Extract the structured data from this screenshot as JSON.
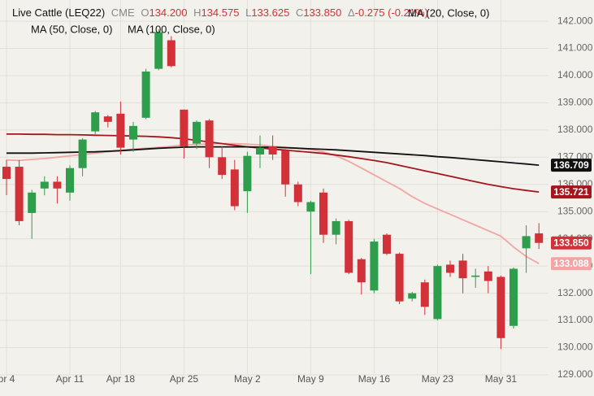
{
  "header": {
    "symbol": "Live Cattle (LEQ22)",
    "exchange": "CME",
    "open_label": "O",
    "open": "134.200",
    "high_label": "H",
    "high": "134.575",
    "low_label": "L",
    "low": "133.625",
    "close_label": "C",
    "close": "133.850",
    "change_label": "Δ",
    "change": "-0.275 (-0.21%)"
  },
  "chart_data": {
    "type": "candlestick",
    "categories": [
      "pr 4",
      null,
      null,
      null,
      null,
      "Apr 11",
      null,
      null,
      null,
      "Apr 18",
      null,
      null,
      null,
      null,
      "Apr 25",
      null,
      null,
      null,
      null,
      "May 2",
      null,
      null,
      null,
      null,
      "May 9",
      null,
      null,
      null,
      null,
      "May 16",
      null,
      null,
      null,
      null,
      "May 23",
      null,
      null,
      null,
      null,
      "May 31",
      null,
      null,
      null
    ],
    "open": [
      136.65,
      136.65,
      134.95,
      135.85,
      136.1,
      135.7,
      136.6,
      137.95,
      138.5,
      138.6,
      137.65,
      138.45,
      140.25,
      141.3,
      138.75,
      137.5,
      138.35,
      137.0,
      136.55,
      135.75,
      137.1,
      137.4,
      137.25,
      136.0,
      135.0,
      135.7,
      134.15,
      134.65,
      133.25,
      132.1,
      134.15,
      133.45,
      131.8,
      132.4,
      131.05,
      133.05,
      133.2,
      132.6,
      132.8,
      132.6,
      130.8,
      133.65,
      134.2
    ],
    "high": [
      136.9,
      136.9,
      135.8,
      136.3,
      136.3,
      136.7,
      137.7,
      138.7,
      138.55,
      139.05,
      138.3,
      140.25,
      141.7,
      141.45,
      138.75,
      138.35,
      138.4,
      137.4,
      136.9,
      137.2,
      137.8,
      137.8,
      137.3,
      136.1,
      135.4,
      135.85,
      134.75,
      134.7,
      133.3,
      134.0,
      134.2,
      133.5,
      132.05,
      132.5,
      133.05,
      133.2,
      133.45,
      132.9,
      133.0,
      132.65,
      132.95,
      134.5,
      134.575
    ],
    "low": [
      135.6,
      134.5,
      134.0,
      135.6,
      135.3,
      135.4,
      136.3,
      137.85,
      138.1,
      137.1,
      137.2,
      138.4,
      140.2,
      140.3,
      136.95,
      137.3,
      136.6,
      136.2,
      135.05,
      134.95,
      136.6,
      136.9,
      135.55,
      135.2,
      132.7,
      133.85,
      133.8,
      132.7,
      131.95,
      132.0,
      133.4,
      131.6,
      131.7,
      131.2,
      131.0,
      132.6,
      132.0,
      132.2,
      132.0,
      129.95,
      130.7,
      132.75,
      133.625
    ],
    "close": [
      136.2,
      134.65,
      135.7,
      136.1,
      135.85,
      136.6,
      137.65,
      138.65,
      138.3,
      137.35,
      138.15,
      140.15,
      141.6,
      140.35,
      137.4,
      138.3,
      137.0,
      136.35,
      135.2,
      137.05,
      137.35,
      137.1,
      136.0,
      135.35,
      135.35,
      134.15,
      134.65,
      132.75,
      132.4,
      133.9,
      133.45,
      131.7,
      132.0,
      131.5,
      133.0,
      132.75,
      132.55,
      132.65,
      132.45,
      130.35,
      132.9,
      134.1,
      133.85
    ],
    "last_close_label": "133.850",
    "up_color": "#2f9e4c",
    "down_color": "#d2313a",
    "series": [
      {
        "name": "MA (20, Close, 0)",
        "color": "#f2a5a5",
        "values": [
          136.9,
          136.88,
          136.92,
          136.95,
          137.0,
          137.05,
          137.1,
          137.15,
          137.2,
          137.25,
          137.3,
          137.33,
          137.36,
          137.4,
          137.45,
          137.47,
          137.49,
          137.5,
          137.5,
          137.48,
          137.45,
          137.4,
          137.37,
          137.33,
          137.28,
          137.2,
          137.05,
          136.85,
          136.6,
          136.35,
          136.1,
          135.85,
          135.55,
          135.3,
          135.1,
          134.9,
          134.7,
          134.5,
          134.3,
          134.1,
          133.7,
          133.35,
          133.088
        ]
      },
      {
        "name": "MA (50, Close, 0)",
        "color": "#a3161d",
        "values": [
          137.85,
          137.85,
          137.84,
          137.84,
          137.83,
          137.83,
          137.82,
          137.81,
          137.8,
          137.79,
          137.78,
          137.77,
          137.75,
          137.72,
          137.68,
          137.62,
          137.56,
          137.5,
          137.44,
          137.38,
          137.34,
          137.3,
          137.26,
          137.22,
          137.18,
          137.14,
          137.08,
          137.02,
          136.95,
          136.88,
          136.8,
          136.7,
          136.6,
          136.5,
          136.4,
          136.3,
          136.2,
          136.1,
          136.0,
          135.92,
          135.84,
          135.78,
          135.721
        ]
      },
      {
        "name": "MA (100, Close, 0)",
        "color": "#111111",
        "values": [
          137.15,
          137.15,
          137.15,
          137.16,
          137.17,
          137.18,
          137.19,
          137.2,
          137.22,
          137.24,
          137.27,
          137.3,
          137.33,
          137.35,
          137.37,
          137.38,
          137.38,
          137.38,
          137.38,
          137.38,
          137.37,
          137.37,
          137.35,
          137.33,
          137.31,
          137.29,
          137.27,
          137.24,
          137.21,
          137.18,
          137.15,
          137.12,
          137.09,
          137.06,
          137.02,
          136.99,
          136.95,
          136.91,
          136.87,
          136.83,
          136.79,
          136.75,
          136.709
        ]
      }
    ],
    "ylim": [
      128.58,
      142.78
    ],
    "yticks": [
      {
        "value": 129,
        "label": "129.000"
      },
      {
        "value": 130,
        "label": "130.000"
      },
      {
        "value": 131,
        "label": "131.000"
      },
      {
        "value": 132,
        "label": "132.000"
      },
      {
        "value": 133,
        "label": "133.000"
      },
      {
        "value": 134,
        "label": "134.000"
      },
      {
        "value": 135,
        "label": "135.000"
      },
      {
        "value": 136,
        "label": "136.000"
      },
      {
        "value": 137,
        "label": "137.000"
      },
      {
        "value": 138,
        "label": "138.000"
      },
      {
        "value": 139,
        "label": "139.000"
      },
      {
        "value": 140,
        "label": "140.000"
      },
      {
        "value": 141,
        "label": "141.000"
      },
      {
        "value": 142,
        "label": "142.000"
      }
    ],
    "grid": true
  }
}
